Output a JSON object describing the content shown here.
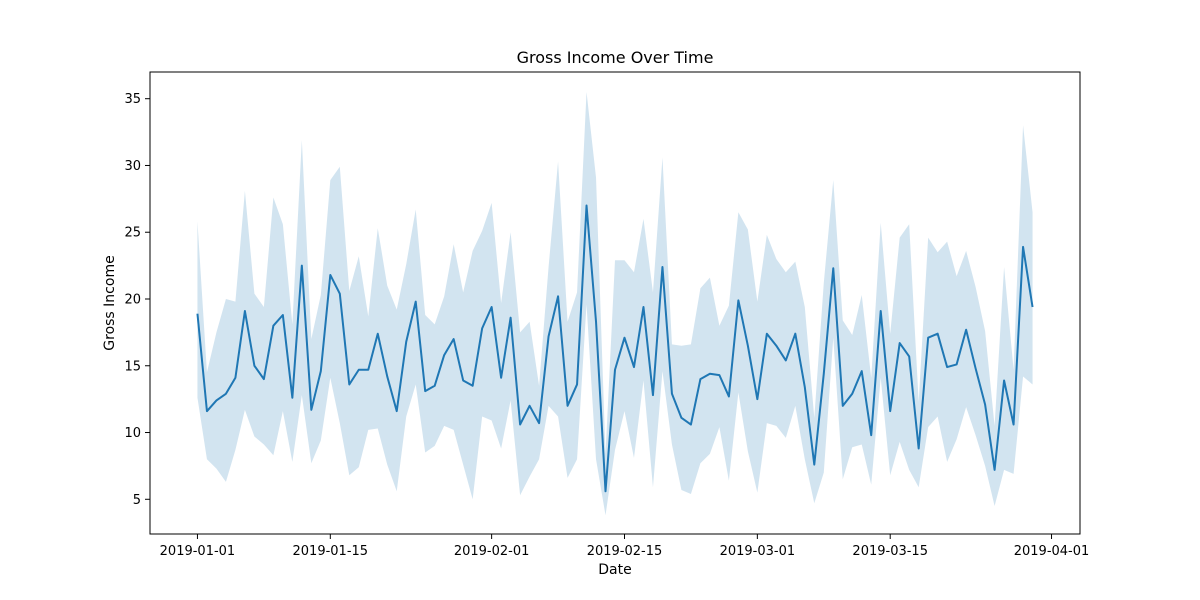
{
  "chart_data": {
    "type": "line",
    "title": "Gross Income Over Time",
    "xlabel": "Date",
    "ylabel": "Gross Income",
    "xlim": [
      "2018-12-27",
      "2019-04-04"
    ],
    "ylim": [
      2.4,
      37.0
    ],
    "x_ticks": [
      "2019-01-01",
      "2019-01-15",
      "2019-02-01",
      "2019-02-15",
      "2019-03-01",
      "2019-03-15",
      "2019-04-01"
    ],
    "y_ticks": [
      5,
      10,
      15,
      20,
      25,
      30,
      35
    ],
    "grid": false,
    "legend": "none",
    "colors": {
      "line": "#1f77b4",
      "band": "#1f77b4",
      "band_opacity": 0.2
    },
    "series": [
      {
        "x": [
          "2019-01-01",
          "2019-01-02",
          "2019-01-03",
          "2019-01-04",
          "2019-01-05",
          "2019-01-06",
          "2019-01-07",
          "2019-01-08",
          "2019-01-09",
          "2019-01-10",
          "2019-01-11",
          "2019-01-12",
          "2019-01-13",
          "2019-01-14",
          "2019-01-15",
          "2019-01-16",
          "2019-01-17",
          "2019-01-18",
          "2019-01-19",
          "2019-01-20",
          "2019-01-21",
          "2019-01-22",
          "2019-01-23",
          "2019-01-24",
          "2019-01-25",
          "2019-01-26",
          "2019-01-27",
          "2019-01-28",
          "2019-01-29",
          "2019-01-30",
          "2019-01-31",
          "2019-02-01",
          "2019-02-02",
          "2019-02-03",
          "2019-02-04",
          "2019-02-05",
          "2019-02-06",
          "2019-02-07",
          "2019-02-08",
          "2019-02-09",
          "2019-02-10",
          "2019-02-11",
          "2019-02-12",
          "2019-02-13",
          "2019-02-14",
          "2019-02-15",
          "2019-02-16",
          "2019-02-17",
          "2019-02-18",
          "2019-02-19",
          "2019-02-20",
          "2019-02-21",
          "2019-02-22",
          "2019-02-23",
          "2019-02-24",
          "2019-02-25",
          "2019-02-26",
          "2019-02-27",
          "2019-02-28",
          "2019-03-01",
          "2019-03-02",
          "2019-03-03",
          "2019-03-04",
          "2019-03-05",
          "2019-03-06",
          "2019-03-07",
          "2019-03-08",
          "2019-03-09",
          "2019-03-10",
          "2019-03-11",
          "2019-03-12",
          "2019-03-13",
          "2019-03-14",
          "2019-03-15",
          "2019-03-16",
          "2019-03-17",
          "2019-03-18",
          "2019-03-19",
          "2019-03-20",
          "2019-03-21",
          "2019-03-22",
          "2019-03-23",
          "2019-03-24",
          "2019-03-25",
          "2019-03-26",
          "2019-03-27",
          "2019-03-28",
          "2019-03-29",
          "2019-03-30"
        ],
        "y": [
          18.9,
          11.6,
          12.4,
          12.9,
          14.1,
          19.1,
          15.0,
          14.0,
          18.0,
          18.8,
          12.6,
          22.5,
          11.7,
          14.6,
          21.8,
          20.4,
          13.6,
          14.7,
          14.7,
          17.4,
          14.2,
          11.6,
          16.8,
          19.8,
          13.1,
          13.5,
          15.8,
          17.0,
          13.9,
          13.5,
          17.8,
          19.4,
          14.1,
          18.6,
          10.6,
          12.0,
          10.7,
          17.2,
          20.2,
          12.0,
          13.6,
          27.0,
          18.3,
          5.6,
          14.7,
          17.1,
          14.9,
          19.4,
          12.8,
          22.4,
          12.9,
          11.1,
          10.6,
          14.0,
          14.4,
          14.3,
          12.7,
          19.9,
          16.5,
          12.5,
          17.4,
          16.5,
          15.4,
          17.4,
          13.4,
          7.6,
          14.4,
          22.3,
          12.0,
          12.9,
          14.6,
          9.8,
          19.1,
          11.6,
          16.7,
          15.7,
          8.8,
          17.1,
          17.4,
          14.9,
          15.1,
          17.7,
          14.8,
          12.1,
          7.2,
          13.9,
          10.6,
          23.9,
          19.4
        ],
        "lower": [
          12.6,
          8.0,
          7.3,
          6.3,
          8.7,
          11.7,
          9.7,
          9.1,
          8.3,
          11.6,
          7.8,
          12.8,
          7.7,
          9.4,
          14.1,
          10.7,
          6.8,
          7.4,
          10.2,
          10.3,
          7.6,
          5.6,
          11.2,
          13.6,
          8.5,
          9.0,
          10.5,
          10.2,
          7.6,
          5.0,
          11.2,
          10.9,
          8.8,
          12.4,
          5.3,
          6.7,
          8.0,
          12.0,
          11.2,
          6.6,
          8.0,
          19.6,
          8.0,
          3.8,
          8.7,
          11.6,
          8.1,
          13.9,
          5.9,
          14.6,
          9.1,
          5.7,
          5.4,
          7.7,
          8.4,
          10.4,
          6.4,
          13.0,
          8.6,
          5.5,
          10.7,
          10.5,
          9.6,
          12.0,
          8.0,
          4.7,
          7.0,
          17.1,
          6.5,
          8.9,
          9.1,
          6.1,
          14.1,
          6.8,
          9.3,
          7.2,
          5.9,
          10.4,
          11.2,
          7.8,
          9.5,
          11.9,
          9.8,
          7.5,
          4.5,
          7.2,
          6.9,
          14.2,
          13.6
        ],
        "upper": [
          25.8,
          14.5,
          17.5,
          20.0,
          19.8,
          28.1,
          20.4,
          19.4,
          27.6,
          25.6,
          18.1,
          31.9,
          17.0,
          20.3,
          28.9,
          29.9,
          20.6,
          23.2,
          18.7,
          25.3,
          21.0,
          19.2,
          22.6,
          26.7,
          18.8,
          18.1,
          20.2,
          24.1,
          20.5,
          23.6,
          25.1,
          27.2,
          19.7,
          25.0,
          17.5,
          18.3,
          13.5,
          22.4,
          30.3,
          18.3,
          20.5,
          35.5,
          29.1,
          8.4,
          22.9,
          22.9,
          22.0,
          26.0,
          20.5,
          30.6,
          16.6,
          16.5,
          16.6,
          20.8,
          21.6,
          18.0,
          19.5,
          26.5,
          25.2,
          19.8,
          24.8,
          23.0,
          22.0,
          22.8,
          19.4,
          11.1,
          21.2,
          28.9,
          18.4,
          17.3,
          20.3,
          14.1,
          25.7,
          17.4,
          24.6,
          25.6,
          12.3,
          24.6,
          23.5,
          24.3,
          21.7,
          23.6,
          20.9,
          17.6,
          10.5,
          22.4,
          14.7,
          33.0,
          26.5
        ]
      }
    ]
  }
}
